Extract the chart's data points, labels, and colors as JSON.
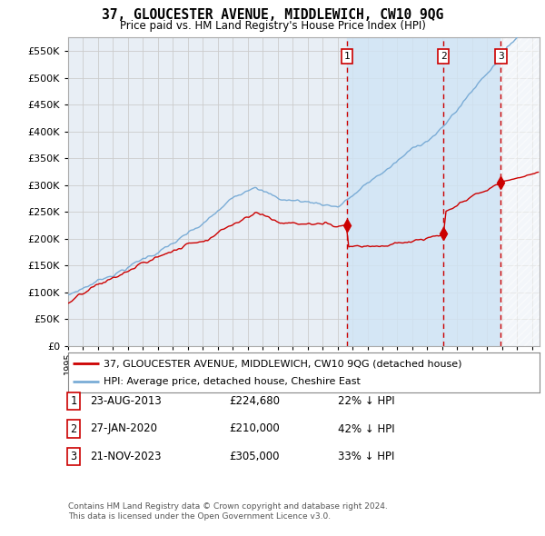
{
  "title": "37, GLOUCESTER AVENUE, MIDDLEWICH, CW10 9QG",
  "subtitle": "Price paid vs. HM Land Registry's House Price Index (HPI)",
  "legend_label_red": "37, GLOUCESTER AVENUE, MIDDLEWICH, CW10 9QG (detached house)",
  "legend_label_blue": "HPI: Average price, detached house, Cheshire East",
  "transactions": [
    {
      "num": 1,
      "date": "23-AUG-2013",
      "price": 224680,
      "pct": "22%",
      "dir": "↓"
    },
    {
      "num": 2,
      "date": "27-JAN-2020",
      "price": 210000,
      "pct": "42%",
      "dir": "↓"
    },
    {
      "num": 3,
      "date": "21-NOV-2023",
      "price": 305000,
      "pct": "33%",
      "dir": "↓"
    }
  ],
  "trans_years": [
    2013.625,
    2020.083,
    2023.917
  ],
  "trans_prices": [
    224680,
    210000,
    305000
  ],
  "footer": [
    "Contains HM Land Registry data © Crown copyright and database right 2024.",
    "This data is licensed under the Open Government Licence v3.0."
  ],
  "ylim": [
    0,
    575000
  ],
  "yticks": [
    0,
    50000,
    100000,
    150000,
    200000,
    250000,
    300000,
    350000,
    400000,
    450000,
    500000,
    550000
  ],
  "xlim_start": 1995.0,
  "xlim_end": 2026.5,
  "vline_color": "#cc0000",
  "grid_color": "#cccccc",
  "bg_color": "#e8eef5",
  "hpi_color": "#7aacd6",
  "prop_color": "#cc0000",
  "shade_color": "#d0e4f5",
  "hatch_color": "#dddddd"
}
